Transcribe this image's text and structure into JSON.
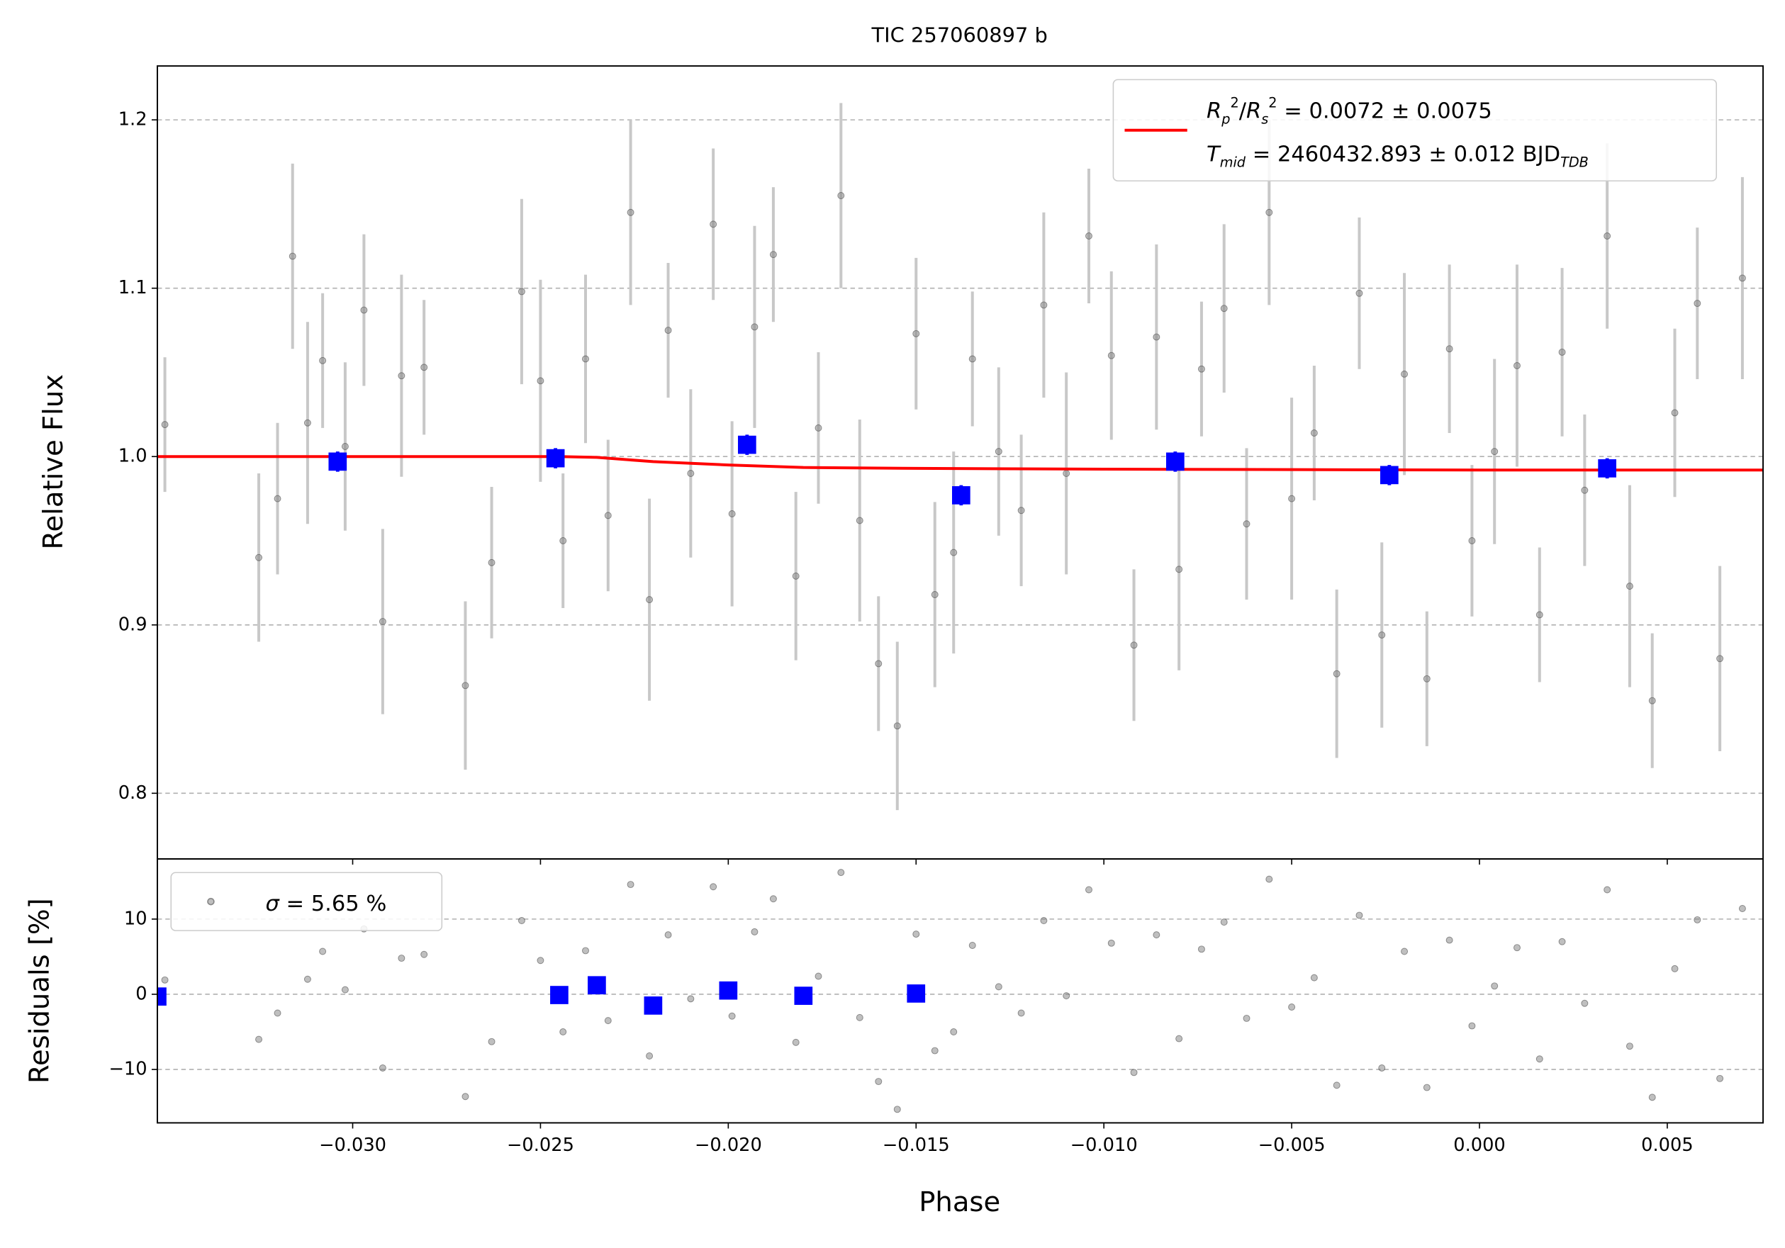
{
  "chart_data": [
    {
      "type": "scatter",
      "title": "TIC 257060897 b",
      "ylabel": "Relative Flux",
      "grid": true,
      "legend": "upper right",
      "xlim": [
        -0.0352,
        0.00755
      ],
      "ylim": [
        0.761,
        1.232
      ],
      "yticks": [
        0.8,
        0.9,
        {
          "value": 1.0,
          "label": "1.0"
        },
        1.1,
        1.2
      ],
      "series": [
        {
          "style": "errorbar",
          "color": "#808080",
          "error_color": "#c8c8c8",
          "x": [
            -0.035,
            -0.0325,
            -0.032,
            -0.0316,
            -0.0312,
            -0.0308,
            -0.0302,
            -0.0297,
            -0.0292,
            -0.0287,
            -0.0281,
            -0.027,
            -0.0263,
            -0.0255,
            -0.025,
            -0.0244,
            -0.0238,
            -0.0232,
            -0.0226,
            -0.0221,
            -0.0216,
            -0.021,
            -0.0204,
            -0.0199,
            -0.0193,
            -0.0188,
            -0.0182,
            -0.0176,
            -0.017,
            -0.0165,
            -0.016,
            -0.0155,
            -0.015,
            -0.0145,
            -0.014,
            -0.0135,
            -0.0128,
            -0.0122,
            -0.0116,
            -0.011,
            -0.0104,
            -0.0098,
            -0.0092,
            -0.0086,
            -0.008,
            -0.0074,
            -0.0068,
            -0.0062,
            -0.0056,
            -0.005,
            -0.0044,
            -0.0038,
            -0.0032,
            -0.0026,
            -0.002,
            -0.0014,
            -0.0008,
            -0.0002,
            0.0004,
            0.001,
            0.0016,
            0.0022,
            0.0028,
            0.0034,
            0.004,
            0.0046,
            0.0052,
            0.0058,
            0.0064,
            0.007
          ],
          "values": [
            1.019,
            0.94,
            0.975,
            1.119,
            1.02,
            1.057,
            1.006,
            1.087,
            0.902,
            1.048,
            1.053,
            0.864,
            0.937,
            1.098,
            1.045,
            0.95,
            1.058,
            0.965,
            1.145,
            0.915,
            1.075,
            0.99,
            1.138,
            0.966,
            1.077,
            1.12,
            0.929,
            1.017,
            1.155,
            0.962,
            0.877,
            0.84,
            1.073,
            0.918,
            0.943,
            1.058,
            1.003,
            0.968,
            1.09,
            0.99,
            1.131,
            1.06,
            0.888,
            1.071,
            0.933,
            1.052,
            1.088,
            0.96,
            1.145,
            0.975,
            1.014,
            0.871,
            1.097,
            0.894,
            1.049,
            0.868,
            1.064,
            0.95,
            1.003,
            1.054,
            0.906,
            1.062,
            0.98,
            1.131,
            0.923,
            0.855,
            1.026,
            1.091,
            0.88,
            1.106
          ],
          "errors": [
            0.04,
            0.05,
            0.045,
            0.055,
            0.06,
            0.04,
            0.05,
            0.045,
            0.055,
            0.06,
            0.04,
            0.05,
            0.045,
            0.055,
            0.06,
            0.04,
            0.05,
            0.045,
            0.055,
            0.06,
            0.04,
            0.05,
            0.045,
            0.055,
            0.06,
            0.04,
            0.05,
            0.045,
            0.055,
            0.06,
            0.04,
            0.05,
            0.045,
            0.055,
            0.06,
            0.04,
            0.05,
            0.045,
            0.055,
            0.06,
            0.04,
            0.05,
            0.045,
            0.055,
            0.06,
            0.04,
            0.05,
            0.045,
            0.055,
            0.06,
            0.04,
            0.05,
            0.045,
            0.055,
            0.06,
            0.04,
            0.05,
            0.045,
            0.055,
            0.06,
            0.04,
            0.05,
            0.045,
            0.055,
            0.06,
            0.04,
            0.05,
            0.045,
            0.055,
            0.06
          ]
        },
        {
          "style": "line",
          "color": "#ff0000",
          "name": [
            [
              {
                "t": "R",
                "s": "i"
              },
              {
                "t": "p",
                "s": "sub"
              },
              {
                "t": "2",
                "s": "sup"
              },
              {
                "t": "/",
                "s": "n"
              },
              {
                "t": "R",
                "s": "i"
              },
              {
                "t": "s",
                "s": "sub"
              },
              {
                "t": "2",
                "s": "sup"
              },
              {
                "t": " = 0.0072 ± 0.0075",
                "s": "n"
              }
            ],
            [
              {
                "t": "T",
                "s": "i"
              },
              {
                "t": "mid",
                "s": "sub"
              },
              {
                "t": " = 2460432.893 ± 0.012 BJD",
                "s": "n"
              },
              {
                "t": "TDB",
                "s": "sub"
              }
            ]
          ],
          "x": [
            -0.0352,
            -0.0245,
            -0.0235,
            -0.022,
            -0.02,
            -0.018,
            -0.015,
            -0.01,
            0.0,
            0.00755
          ],
          "values": [
            1.0,
            1.0,
            0.9995,
            0.997,
            0.995,
            0.9935,
            0.993,
            0.9925,
            0.992,
            0.992
          ]
        },
        {
          "style": "square",
          "color": "#0000ff",
          "x": [
            -0.0304,
            -0.0246,
            -0.0195,
            -0.0138,
            -0.0081,
            -0.0024,
            0.0034
          ],
          "values": [
            0.997,
            0.999,
            1.007,
            0.977,
            0.997,
            0.989,
            0.993
          ],
          "errors": [
            0.006,
            0.006,
            0.006,
            0.006,
            0.006,
            0.006,
            0.006
          ]
        }
      ]
    },
    {
      "type": "scatter",
      "ylabel": "Residuals [%]",
      "xlabel": "Phase",
      "grid": true,
      "legend": "upper left",
      "ylim": [
        -17.1,
        18.0
      ],
      "yticks": [
        {
          "value": -10,
          "label": "−10"
        },
        0,
        10
      ],
      "xticks": [
        {
          "value": -0.03,
          "label": "−0.030"
        },
        {
          "value": -0.025,
          "label": "−0.025"
        },
        {
          "value": -0.02,
          "label": "−0.020"
        },
        {
          "value": -0.015,
          "label": "−0.015"
        },
        {
          "value": -0.01,
          "label": "−0.010"
        },
        {
          "value": -0.005,
          "label": "−0.005"
        },
        {
          "value": 0,
          "label": "0.000"
        },
        0.005
      ],
      "series": [
        {
          "style": "points",
          "color": "#808080",
          "name": [
            [
              {
                "t": "σ",
                "s": "i"
              },
              {
                "t": " = 5.65 %",
                "s": "n"
              }
            ]
          ],
          "values": [
            1.9,
            -6,
            -2.5,
            11.9,
            2,
            5.7,
            0.6,
            8.7,
            -9.8,
            4.8,
            5.3,
            -13.6,
            -6.3,
            9.8,
            4.5,
            -5,
            5.8,
            -3.5,
            14.6,
            -8.2,
            7.9,
            -0.6,
            14.3,
            -2.9,
            8.3,
            12.7,
            -6.4,
            2.4,
            16.2,
            -3.1,
            -11.6,
            -15.3,
            8.0,
            -7.5,
            -5.0,
            6.5,
            1.0,
            -2.5,
            9.8,
            -0.2,
            13.9,
            6.8,
            -10.4,
            7.9,
            -5.9,
            6.0,
            9.6,
            -3.2,
            15.3,
            -1.7,
            2.2,
            -12.1,
            10.5,
            -9.8,
            5.7,
            -12.4,
            7.2,
            -4.2,
            1.1,
            6.2,
            -8.6,
            7.0,
            -1.2,
            13.9,
            -6.9,
            -13.7,
            3.4,
            9.9,
            -11.2,
            11.4
          ]
        },
        {
          "style": "square",
          "color": "#0000ff",
          "values": [
            -0.3,
            -0.1,
            1.2,
            -1.5,
            0.5,
            -0.2,
            0.1
          ]
        }
      ]
    }
  ]
}
